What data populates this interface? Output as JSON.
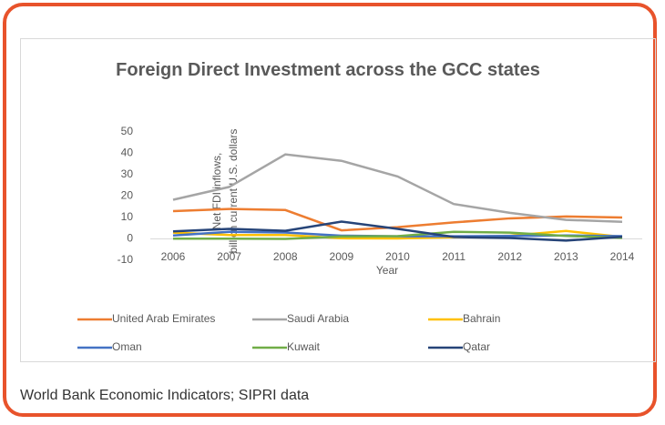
{
  "chart_data": {
    "type": "line",
    "title": "Foreign Direct Investment across the GCC states",
    "x_label": "Year",
    "y_label": "Net FDI inflows, billion current U.S. dollars",
    "categories": [
      "2006",
      "2007",
      "2008",
      "2009",
      "2010",
      "2011",
      "2012",
      "2013",
      "2014"
    ],
    "series": [
      {
        "name": "United Arab Emirates",
        "color": "#ed7d31",
        "values": [
          13,
          14,
          13.5,
          4,
          5.5,
          7.7,
          9.6,
          10.5,
          10
        ]
      },
      {
        "name": "Saudi Arabia",
        "color": "#a5a5a5",
        "values": [
          18.3,
          24.3,
          39.5,
          36.5,
          29.2,
          16.3,
          12.2,
          8.9,
          8
        ]
      },
      {
        "name": "Bahrain",
        "color": "#ffc000",
        "values": [
          2.9,
          1.8,
          1.8,
          0.3,
          0.2,
          0.8,
          1.5,
          3.7,
          0.9
        ]
      },
      {
        "name": "Oman",
        "color": "#4472c4",
        "values": [
          1.6,
          3.3,
          3,
          1.5,
          1.2,
          1.2,
          1.4,
          1.6,
          1.3
        ]
      },
      {
        "name": "Kuwait",
        "color": "#70ad47",
        "values": [
          0.1,
          0.1,
          0,
          1.1,
          1.3,
          3.3,
          2.9,
          1.4,
          0.5
        ]
      },
      {
        "name": "Qatar",
        "color": "#264478",
        "values": [
          3.5,
          4.7,
          3.8,
          8.1,
          4.7,
          0.9,
          0.4,
          -0.8,
          1
        ]
      }
    ],
    "ylim": [
      -10,
      50
    ],
    "yticks": [
      -10,
      0,
      10,
      20,
      30,
      40,
      50
    ],
    "grid": false
  },
  "caption": "World Bank Economic Indicators; SIPRI data"
}
